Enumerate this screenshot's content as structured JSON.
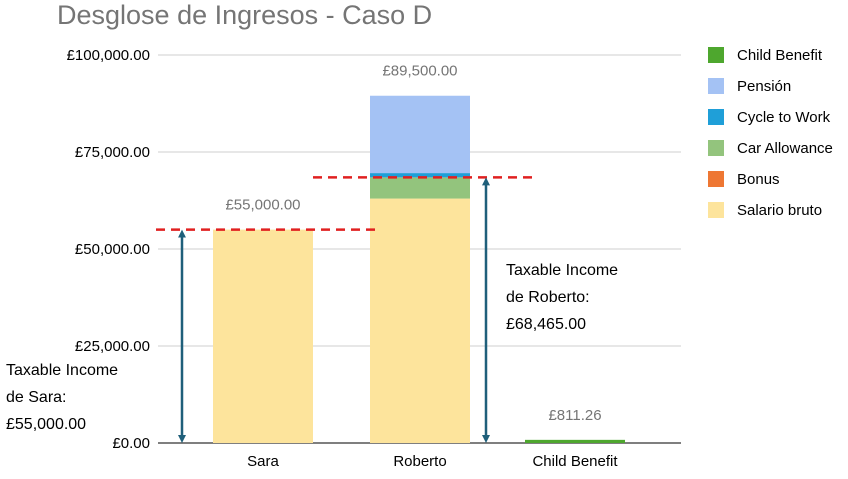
{
  "chart_data": {
    "type": "bar",
    "stacked": true,
    "title": "Desglose de Ingresos - Caso D",
    "xlabel": "",
    "ylabel": "",
    "categories": [
      "Sara",
      "Roberto",
      "Child Benefit"
    ],
    "ylim": [
      0,
      100000
    ],
    "yticks": [
      0,
      25000,
      50000,
      75000,
      100000
    ],
    "ytick_labels": [
      "£0.00",
      "£25,000.00",
      "£50,000.00",
      "£75,000.00",
      "£100,000.00"
    ],
    "grid": true,
    "legend_position": "right",
    "series": [
      {
        "name": "Salario bruto",
        "color": "#fde49c",
        "values": [
          55000,
          63000,
          0
        ]
      },
      {
        "name": "Bonus",
        "color": "#ee7733",
        "values": [
          0,
          0,
          0
        ]
      },
      {
        "name": "Car Allowance",
        "color": "#93c47d",
        "values": [
          0,
          5465,
          0
        ]
      },
      {
        "name": "Cycle to Work",
        "color": "#1f9fd8",
        "values": [
          0,
          1100,
          0
        ]
      },
      {
        "name": "Pensión",
        "color": "#a4c2f4",
        "values": [
          0,
          19935,
          0
        ]
      },
      {
        "name": "Child Benefit",
        "color": "#4ea72e",
        "values": [
          0,
          0,
          811.26
        ]
      }
    ],
    "legend_order": [
      "Child Benefit",
      "Pensión",
      "Cycle to Work",
      "Car Allowance",
      "Bonus",
      "Salario bruto"
    ],
    "total_labels": [
      "£55,000.00",
      "£89,500.00",
      "£811.26"
    ],
    "totals": [
      55000,
      89500,
      811.26
    ],
    "reference_lines": [
      {
        "category": "Sara",
        "value": 55000,
        "color": "#e02020",
        "style": "dashed"
      },
      {
        "category": "Roberto",
        "value": 68465,
        "color": "#e02020",
        "style": "dashed"
      }
    ],
    "annotations": [
      {
        "category": "Sara",
        "value": 55000,
        "lines": [
          "Taxable Income",
          "de Sara:",
          "£55,000.00"
        ]
      },
      {
        "category": "Roberto",
        "value": 68465,
        "lines": [
          "Taxable Income",
          "de Roberto:",
          "£68,465.00"
        ]
      }
    ],
    "arrow_color": "#1f5f7a"
  }
}
